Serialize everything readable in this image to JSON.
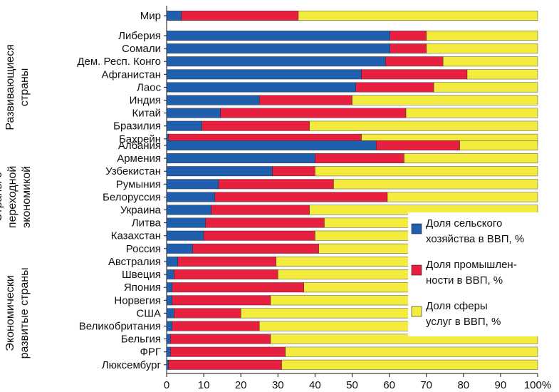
{
  "chart_data": {
    "type": "bar",
    "orientation": "horizontal",
    "stacked": true,
    "xlim": [
      0,
      100
    ],
    "x_ticks": [
      "0",
      "10",
      "20",
      "30",
      "40",
      "50",
      "60",
      "70",
      "80",
      "90",
      "100%"
    ],
    "colors": {
      "agriculture": "#1f5fae",
      "industry": "#e8203f",
      "services": "#f3ec3e"
    },
    "legend": {
      "position": "right",
      "entries": [
        {
          "series": "agriculture",
          "line1": "Доля сельского",
          "line2": "хозяйства в ВВП, %"
        },
        {
          "series": "industry",
          "line1": "Доля промышлен-",
          "line2": "ности в ВВП, %"
        },
        {
          "series": "services",
          "line1": "Доля сферы",
          "line2": "услуг в ВВП, %"
        }
      ]
    },
    "groups": [
      {
        "name": "",
        "label_lines": [],
        "rows": [
          {
            "name": "Мир",
            "agriculture": 4,
            "industry": 31.5,
            "services": 64.5
          }
        ]
      },
      {
        "name": "Развивающиеся страны",
        "label_lines": [
          "Развивающиеся",
          "страны"
        ],
        "rows": [
          {
            "name": "Либерия",
            "agriculture": 60.2,
            "industry": 9.8,
            "services": 30
          },
          {
            "name": "Сомали",
            "agriculture": 60.2,
            "industry": 9.8,
            "services": 30
          },
          {
            "name": "Дем. Респ. Конго",
            "agriculture": 59,
            "industry": 15.5,
            "services": 25.5
          },
          {
            "name": "Афганистан",
            "agriculture": 52.5,
            "industry": 28.5,
            "services": 19
          },
          {
            "name": "Лаос",
            "agriculture": 51,
            "industry": 21,
            "services": 28
          },
          {
            "name": "Индия",
            "agriculture": 25,
            "industry": 25,
            "services": 50
          },
          {
            "name": "Китай",
            "agriculture": 14.5,
            "industry": 50,
            "services": 35.5
          },
          {
            "name": "Бразилия",
            "agriculture": 9.5,
            "industry": 29,
            "services": 61.5
          },
          {
            "name": "Бахрейн",
            "agriculture": 0.5,
            "industry": 52,
            "services": 47.5
          }
        ]
      },
      {
        "name": "Страны с переходной экономикой",
        "label_lines": [
          "Страны с",
          "переходной",
          "экономикой"
        ],
        "rows": [
          {
            "name": "Албания",
            "agriculture": 56.5,
            "industry": 22.5,
            "services": 21
          },
          {
            "name": "Армения",
            "agriculture": 40,
            "industry": 24,
            "services": 36
          },
          {
            "name": "Узбекистан",
            "agriculture": 28.5,
            "industry": 11.5,
            "services": 60
          },
          {
            "name": "Румыния",
            "agriculture": 14,
            "industry": 31,
            "services": 55
          },
          {
            "name": "Белоруссия",
            "agriculture": 13,
            "industry": 46.5,
            "services": 40.5
          },
          {
            "name": "Украина",
            "agriculture": 12,
            "industry": 26.5,
            "services": 61.5
          },
          {
            "name": "Литва",
            "agriculture": 10.5,
            "industry": 32,
            "services": 57.5
          },
          {
            "name": "Казахстан",
            "agriculture": 10,
            "industry": 30,
            "services": 60
          },
          {
            "name": "Россия",
            "agriculture": 7,
            "industry": 34,
            "services": 59
          }
        ]
      },
      {
        "name": "Экономически развитые страны",
        "label_lines": [
          "Экономически",
          "развитые страны"
        ],
        "rows": [
          {
            "name": "Австралия",
            "agriculture": 3,
            "industry": 26.5,
            "services": 70.5
          },
          {
            "name": "Швеция",
            "agriculture": 2,
            "industry": 28,
            "services": 70
          },
          {
            "name": "Япония",
            "agriculture": 1.5,
            "industry": 35.5,
            "services": 63
          },
          {
            "name": "Норвегия",
            "agriculture": 1.5,
            "industry": 26.5,
            "services": 72
          },
          {
            "name": "США",
            "agriculture": 2,
            "industry": 18,
            "services": 80
          },
          {
            "name": "Великобритания",
            "agriculture": 1.5,
            "industry": 23.5,
            "services": 75
          },
          {
            "name": "Бельгия",
            "agriculture": 1,
            "industry": 27,
            "services": 72
          },
          {
            "name": "ФРГ",
            "agriculture": 1,
            "industry": 31,
            "services": 68
          },
          {
            "name": "Люксембург",
            "agriculture": 0.5,
            "industry": 30.5,
            "services": 69
          }
        ]
      }
    ]
  }
}
